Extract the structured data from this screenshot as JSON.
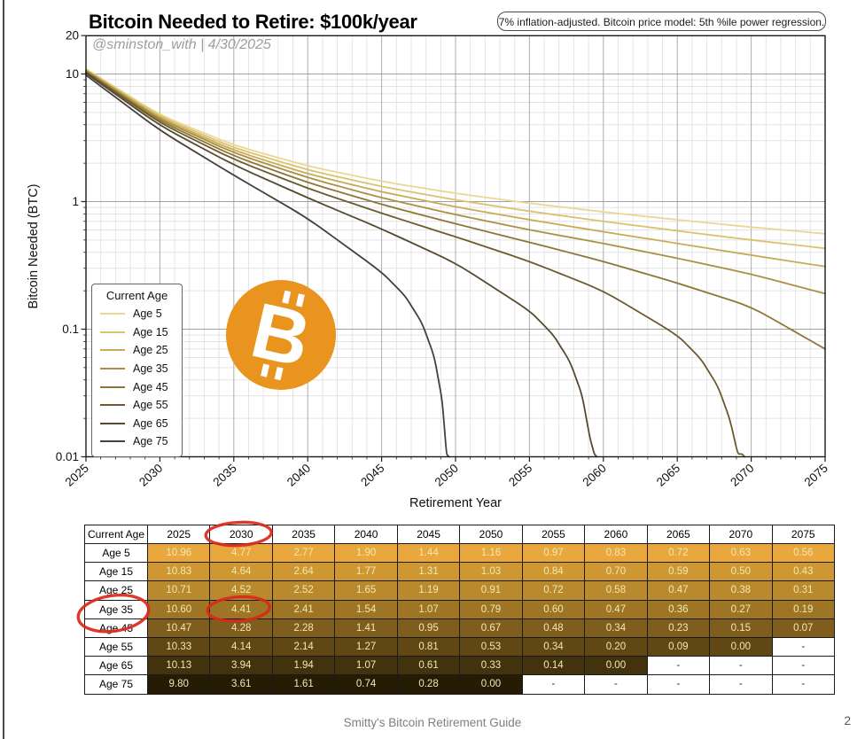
{
  "page": {
    "title": "Bitcoin Needed to Retire: $100k/year",
    "annotation": "7% inflation-adjusted. Bitcoin price model: 5th %ile power regression.",
    "watermark": "@sminston_with  |  4/30/2025",
    "footer": "Smitty's Bitcoin Retirement Guide",
    "page_number": "2"
  },
  "chart_data": {
    "type": "line",
    "title": "Bitcoin Needed to Retire: $100k/year",
    "xlabel": "Retirement Year",
    "ylabel": "Bitcoin Needed (BTC)",
    "x_scale": "linear",
    "y_scale": "log",
    "xlim": [
      2025,
      2075
    ],
    "ylim": [
      0.01,
      20
    ],
    "grid": true,
    "legend_title": "Current Age",
    "legend_position": "lower left",
    "x_ticks": [
      2025,
      2030,
      2035,
      2040,
      2045,
      2050,
      2055,
      2060,
      2065,
      2070,
      2075
    ],
    "y_ticks": [
      {
        "value": 20,
        "label": "20"
      },
      {
        "value": 10,
        "label": "10"
      },
      {
        "value": 1,
        "label": "1"
      },
      {
        "value": 0.1,
        "label": "0.1"
      },
      {
        "value": 0.01,
        "label": "0.01"
      }
    ],
    "categories": [
      2025,
      2030,
      2035,
      2040,
      2045,
      2050,
      2055,
      2060,
      2065,
      2070,
      2075
    ],
    "series": [
      {
        "name": "Age 5",
        "color": "#e8d795",
        "row_color": "#e8a83e",
        "values": [
          10.96,
          4.77,
          2.77,
          1.9,
          1.44,
          1.16,
          0.97,
          0.83,
          0.72,
          0.63,
          0.56
        ]
      },
      {
        "name": "Age 15",
        "color": "#dcc26e",
        "row_color": "#cf9732",
        "values": [
          10.83,
          4.64,
          2.64,
          1.77,
          1.31,
          1.03,
          0.84,
          0.7,
          0.59,
          0.5,
          0.43
        ]
      },
      {
        "name": "Age 25",
        "color": "#c7ab55",
        "row_color": "#b9892e",
        "values": [
          10.71,
          4.52,
          2.52,
          1.65,
          1.19,
          0.91,
          0.72,
          0.58,
          0.47,
          0.38,
          0.31
        ]
      },
      {
        "name": "Age 35",
        "color": "#ab9044",
        "row_color": "#9d7524",
        "values": [
          10.6,
          4.41,
          2.41,
          1.54,
          1.07,
          0.79,
          0.6,
          0.47,
          0.36,
          0.27,
          0.19
        ]
      },
      {
        "name": "Age 45",
        "color": "#8d7637",
        "row_color": "#7f5e1d",
        "values": [
          10.47,
          4.28,
          2.28,
          1.41,
          0.95,
          0.67,
          0.48,
          0.34,
          0.23,
          0.15,
          0.07
        ]
      },
      {
        "name": "Age 55",
        "color": "#6b5a2e",
        "row_color": "#5f4815",
        "values": [
          10.33,
          4.14,
          2.14,
          1.27,
          0.81,
          0.53,
          0.34,
          0.2,
          0.09,
          0.0,
          null
        ]
      },
      {
        "name": "Age 65",
        "color": "#55492f",
        "row_color": "#42330e",
        "values": [
          10.13,
          3.94,
          1.94,
          1.07,
          0.61,
          0.33,
          0.14,
          0.0,
          null,
          null,
          null
        ]
      },
      {
        "name": "Age 75",
        "color": "#45403a",
        "row_color": "#261c06",
        "values": [
          9.8,
          3.61,
          1.61,
          0.74,
          0.28,
          0.0,
          null,
          null,
          null,
          null,
          null
        ]
      }
    ]
  },
  "table": {
    "corner_label": "Current Age",
    "empty_cell": "-",
    "value_text_color": "#f2e8b0"
  },
  "highlights": {
    "color": "#d9291b",
    "circles": [
      {
        "on": "column-header",
        "column": 2030
      },
      {
        "on": "cell",
        "row": "Age 35",
        "column": 2030
      },
      {
        "on": "row-label",
        "row": "Age 35"
      }
    ]
  },
  "logo": {
    "name": "bitcoin-logo",
    "color": "#e8941f",
    "symbol": "B"
  }
}
